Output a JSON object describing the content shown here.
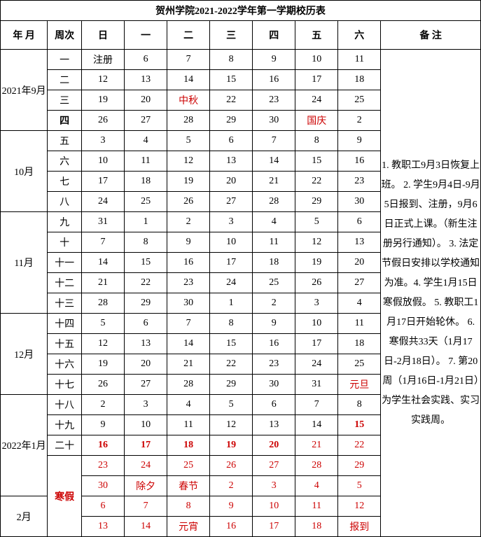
{
  "title": "贺州学院2021-2022学年第一学期校历表",
  "headers": {
    "month": "年 月",
    "week": "周次",
    "days": [
      "日",
      "一",
      "二",
      "三",
      "四",
      "五",
      "六"
    ],
    "notes": "备 注"
  },
  "months": {
    "sep": "2021年9月",
    "oct": "10月",
    "nov": "11月",
    "dec": "12月",
    "jan": "2022年1月",
    "feb": "2月"
  },
  "weeks": {
    "w1": "一",
    "w2": "二",
    "w3": "三",
    "w4": "四",
    "w5": "五",
    "w6": "六",
    "w7": "七",
    "w8": "八",
    "w9": "九",
    "w10": "十",
    "w11": "十一",
    "w12": "十二",
    "w13": "十三",
    "w14": "十四",
    "w15": "十五",
    "w16": "十六",
    "w17": "十七",
    "w18": "十八",
    "w19": "十九",
    "w20": "二十",
    "vac": "寒假"
  },
  "cells": {
    "r1": [
      "注册",
      "6",
      "7",
      "8",
      "9",
      "10",
      "11"
    ],
    "r2": [
      "12",
      "13",
      "14",
      "15",
      "16",
      "17",
      "18"
    ],
    "r3": [
      "19",
      "20",
      "中秋",
      "22",
      "23",
      "24",
      "25"
    ],
    "r4": [
      "26",
      "27",
      "28",
      "29",
      "30",
      "国庆",
      "2"
    ],
    "r5": [
      "3",
      "4",
      "5",
      "6",
      "7",
      "8",
      "9"
    ],
    "r6": [
      "10",
      "11",
      "12",
      "13",
      "14",
      "15",
      "16"
    ],
    "r7": [
      "17",
      "18",
      "19",
      "20",
      "21",
      "22",
      "23"
    ],
    "r8": [
      "24",
      "25",
      "26",
      "27",
      "28",
      "29",
      "30"
    ],
    "r9": [
      "31",
      "1",
      "2",
      "3",
      "4",
      "5",
      "6"
    ],
    "r10": [
      "7",
      "8",
      "9",
      "10",
      "11",
      "12",
      "13"
    ],
    "r11": [
      "14",
      "15",
      "16",
      "17",
      "18",
      "19",
      "20"
    ],
    "r12": [
      "21",
      "22",
      "23",
      "24",
      "25",
      "26",
      "27"
    ],
    "r13": [
      "28",
      "29",
      "30",
      "1",
      "2",
      "3",
      "4"
    ],
    "r14": [
      "5",
      "6",
      "7",
      "8",
      "9",
      "10",
      "11"
    ],
    "r15": [
      "12",
      "13",
      "14",
      "15",
      "16",
      "17",
      "18"
    ],
    "r16": [
      "19",
      "20",
      "21",
      "22",
      "23",
      "24",
      "25"
    ],
    "r17": [
      "26",
      "27",
      "28",
      "29",
      "30",
      "31",
      "元旦"
    ],
    "r18": [
      "2",
      "3",
      "4",
      "5",
      "6",
      "7",
      "8"
    ],
    "r19": [
      "9",
      "10",
      "11",
      "12",
      "13",
      "14",
      "15"
    ],
    "r20": [
      "16",
      "17",
      "18",
      "19",
      "20",
      "21",
      "22"
    ],
    "r21": [
      "23",
      "24",
      "25",
      "26",
      "27",
      "28",
      "29"
    ],
    "r22": [
      "30",
      "除夕",
      "春节",
      "2",
      "3",
      "4",
      "5"
    ],
    "r23": [
      "6",
      "7",
      "8",
      "9",
      "10",
      "11",
      "12"
    ],
    "r24": [
      "13",
      "14",
      "元宵",
      "16",
      "17",
      "18",
      "报到"
    ]
  },
  "notes": "1. 教职工9月3日恢复上班。\n2. 学生9月4日-9月5日报到、注册，9月6日正式上课。（新生注册另行通知）。\n3. 法定节假日安排以学校通知为准。4. 学生1月15日寒假放假。\n5. 教职工1月17日开始轮休。\n6. 寒假共33天（1月17日-2月18日）。\n7. 第20周（1月16日-1月21日）为学生社会实践、实习实践周。"
}
